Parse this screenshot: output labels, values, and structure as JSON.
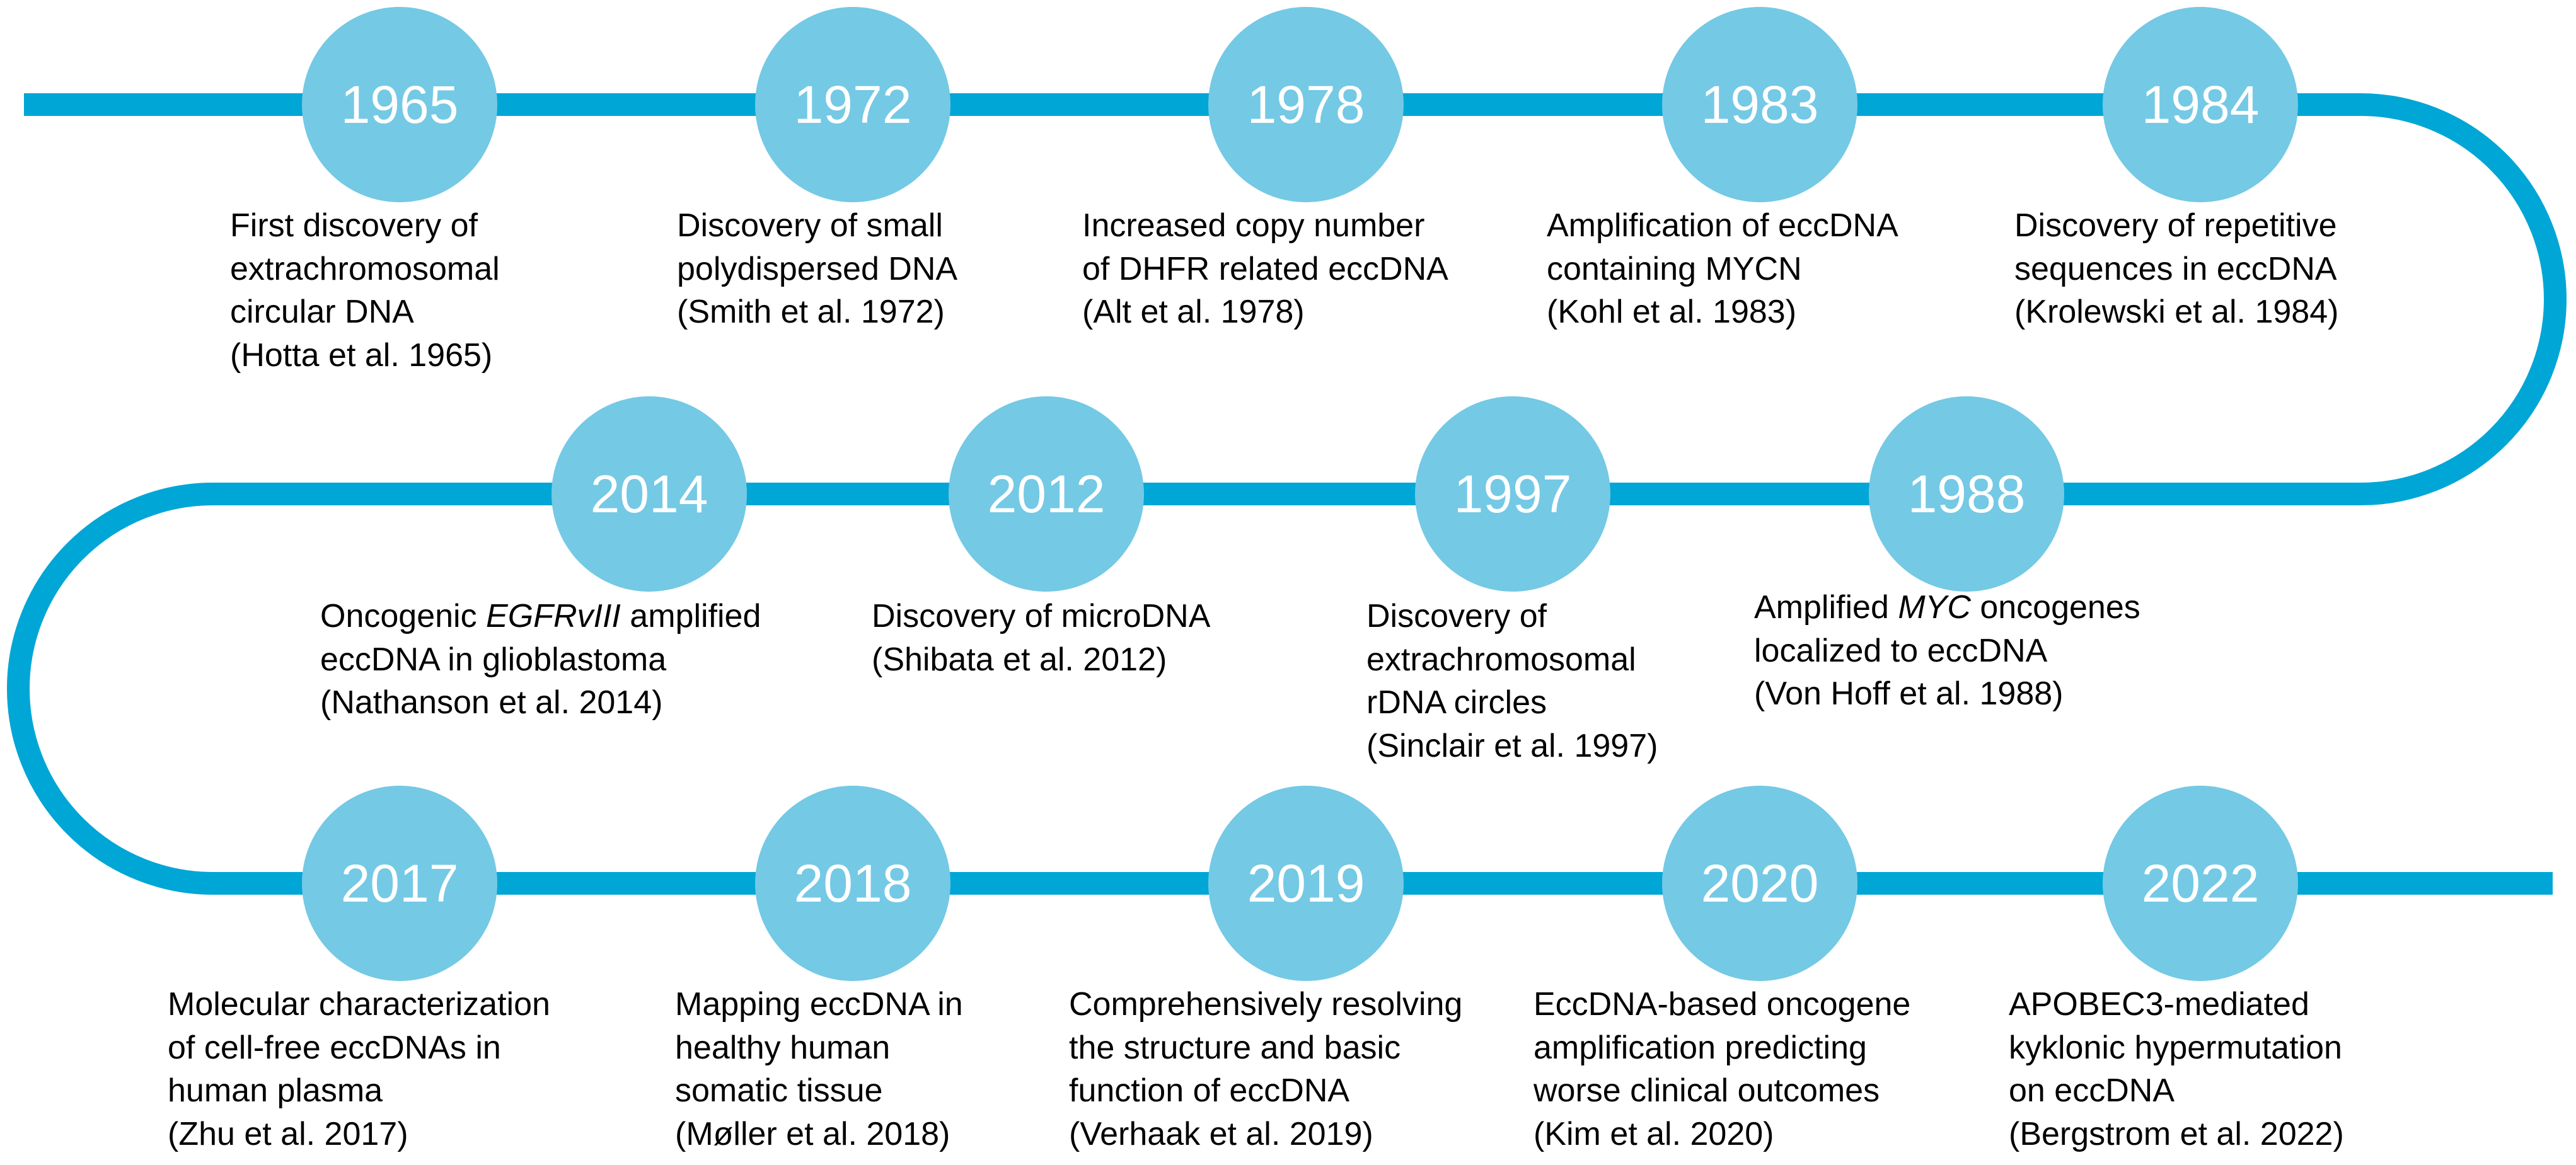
{
  "colors": {
    "track": "#00a6d6",
    "circle": "#74c9e5",
    "year_text": "#ffffff",
    "text": "#000000"
  },
  "rows": [
    [
      {
        "year": "1965",
        "lines": [
          [
            {
              "t": "First discovery of"
            }
          ],
          [
            {
              "t": "extrachromosomal"
            }
          ],
          [
            {
              "t": "circular DNA"
            }
          ],
          [
            {
              "t": "(Hotta et al. 1965)"
            }
          ]
        ]
      },
      {
        "year": "1972",
        "lines": [
          [
            {
              "t": "Discovery of small"
            }
          ],
          [
            {
              "t": "polydispersed DNA"
            }
          ],
          [
            {
              "t": "(Smith et al. 1972)"
            }
          ]
        ]
      },
      {
        "year": "1978",
        "lines": [
          [
            {
              "t": "Increased copy number"
            }
          ],
          [
            {
              "t": "of DHFR related eccDNA"
            }
          ],
          [
            {
              "t": "(Alt et al. 1978)"
            }
          ]
        ]
      },
      {
        "year": "1983",
        "lines": [
          [
            {
              "t": "Amplification of eccDNA"
            }
          ],
          [
            {
              "t": "containing MYCN"
            }
          ],
          [
            {
              "t": "(Kohl et al. 1983)"
            }
          ]
        ]
      },
      {
        "year": "1984",
        "lines": [
          [
            {
              "t": "Discovery of repetitive"
            }
          ],
          [
            {
              "t": "sequences in eccDNA"
            }
          ],
          [
            {
              "t": "(Krolewski et al. 1984)"
            }
          ]
        ]
      }
    ],
    [
      {
        "year": "2014",
        "lines": [
          [
            {
              "t": "Oncogenic "
            },
            {
              "t": "EGFRvIII",
              "i": true
            },
            {
              "t": " amplified"
            }
          ],
          [
            {
              "t": "eccDNA in glioblastoma"
            }
          ],
          [
            {
              "t": "(Nathanson et al. 2014)"
            }
          ]
        ]
      },
      {
        "year": "2012",
        "lines": [
          [
            {
              "t": "Discovery of microDNA"
            }
          ],
          [
            {
              "t": "(Shibata et al. 2012)"
            }
          ]
        ]
      },
      {
        "year": "1997",
        "lines": [
          [
            {
              "t": "Discovery of"
            }
          ],
          [
            {
              "t": "extrachromosomal"
            }
          ],
          [
            {
              "t": "rDNA circles"
            }
          ],
          [
            {
              "t": "(Sinclair et al. 1997)"
            }
          ]
        ]
      },
      {
        "year": "1988",
        "lines": [
          [
            {
              "t": "Amplified "
            },
            {
              "t": "MYC",
              "i": true
            },
            {
              "t": " oncogenes"
            }
          ],
          [
            {
              "t": "localized to eccDNA"
            }
          ],
          [
            {
              "t": "(Von Hoff et al. 1988)"
            }
          ]
        ]
      }
    ],
    [
      {
        "year": "2017",
        "lines": [
          [
            {
              "t": "Molecular characterization"
            }
          ],
          [
            {
              "t": "of cell-free eccDNAs in"
            }
          ],
          [
            {
              "t": "human plasma"
            }
          ],
          [
            {
              "t": "(Zhu et al. 2017)"
            }
          ]
        ]
      },
      {
        "year": "2018",
        "lines": [
          [
            {
              "t": "Mapping eccDNA in"
            }
          ],
          [
            {
              "t": "healthy human"
            }
          ],
          [
            {
              "t": "somatic tissue"
            }
          ],
          [
            {
              "t": "(Møller et al. 2018)"
            }
          ]
        ]
      },
      {
        "year": "2019",
        "lines": [
          [
            {
              "t": "Comprehensively resolving"
            }
          ],
          [
            {
              "t": "the structure and basic"
            }
          ],
          [
            {
              "t": "function of eccDNA"
            }
          ],
          [
            {
              "t": "(Verhaak et al. 2019)"
            }
          ]
        ]
      },
      {
        "year": "2020",
        "lines": [
          [
            {
              "t": "EccDNA-based oncogene"
            }
          ],
          [
            {
              "t": "amplification predicting"
            }
          ],
          [
            {
              "t": "worse clinical outcomes"
            }
          ],
          [
            {
              "t": "(Kim et al. 2020)"
            }
          ]
        ]
      },
      {
        "year": "2022",
        "lines": [
          [
            {
              "t": "APOBEC3-mediated"
            }
          ],
          [
            {
              "t": "kyklonic hypermutation"
            }
          ],
          [
            {
              "t": "on eccDNA"
            }
          ],
          [
            {
              "t": "(Bergstrom et al. 2022)"
            }
          ]
        ]
      }
    ]
  ]
}
